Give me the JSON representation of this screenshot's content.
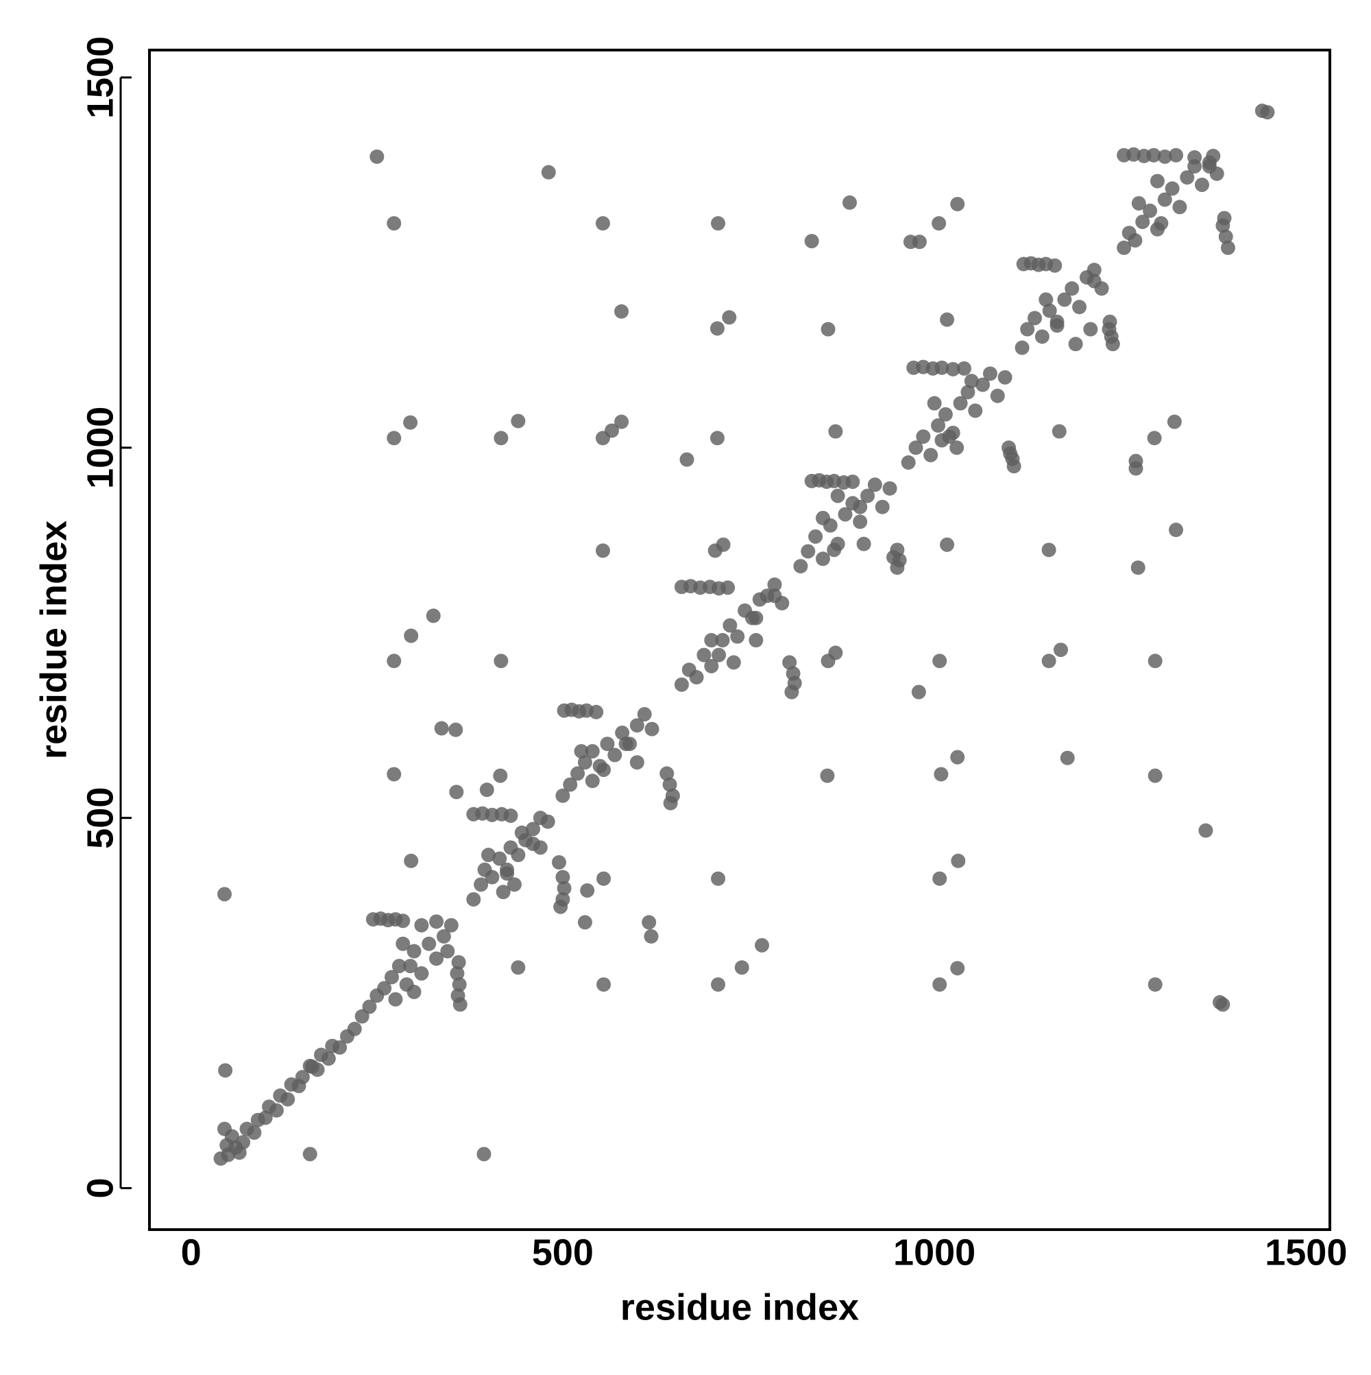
{
  "chart_data": {
    "type": "scatter",
    "x_label": "residue index",
    "y_label": "residue index",
    "xlim": [
      -56,
      1532
    ],
    "ylim": [
      -56,
      1537
    ],
    "xticks": [
      0,
      500,
      1000,
      1500
    ],
    "yticks": [
      0,
      500,
      1000,
      1500
    ],
    "grid": false,
    "color": "#5f5f5f",
    "x": [
      40,
      50,
      48,
      55,
      60,
      70,
      75,
      85,
      90,
      100,
      105,
      115,
      120,
      130,
      135,
      145,
      150,
      160,
      170,
      175,
      185,
      190,
      200,
      210,
      220,
      230,
      45,
      65,
      245,
      255,
      265,
      275,
      285,
      240,
      250,
      260,
      270,
      280,
      290,
      300,
      310,
      300,
      320,
      330,
      285,
      275,
      340,
      350,
      345,
      330,
      310,
      360,
      358,
      361,
      359,
      362,
      295,
      380,
      392,
      405,
      418,
      430,
      380,
      390,
      395,
      405,
      415,
      425,
      430,
      440,
      450,
      460,
      470,
      480,
      470,
      445,
      420,
      435,
      400,
      495,
      500,
      502,
      500,
      497,
      425,
      460,
      502,
      512,
      522,
      532,
      545,
      500,
      510,
      520,
      530,
      540,
      550,
      560,
      570,
      580,
      590,
      600,
      610,
      620,
      540,
      525,
      600,
      640,
      644,
      648,
      645,
      555,
      585,
      660,
      672,
      685,
      698,
      710,
      722,
      660,
      670,
      680,
      690,
      700,
      715,
      725,
      735,
      745,
      755,
      765,
      775,
      785,
      795,
      760,
      730,
      700,
      805,
      810,
      812,
      808,
      710,
      760,
      785,
      835,
      845,
      855,
      865,
      878,
      890,
      820,
      830,
      840,
      850,
      860,
      870,
      880,
      890,
      900,
      910,
      920,
      930,
      940,
      870,
      905,
      850,
      950,
      953,
      950,
      945,
      865,
      900,
      972,
      985,
      998,
      1010,
      1025,
      1040,
      965,
      975,
      985,
      995,
      1005,
      1015,
      1025,
      1035,
      1045,
      1055,
      1065,
      1075,
      1085,
      1095,
      1050,
      1000,
      1030,
      1100,
      1105,
      1107,
      1102,
      1010,
      1020,
      1120,
      1130,
      1140,
      1150,
      1162,
      1118,
      1125,
      1135,
      1145,
      1155,
      1165,
      1175,
      1185,
      1195,
      1205,
      1215,
      1225,
      1190,
      1150,
      1210,
      1235,
      1238,
      1240,
      1236,
      1165,
      1215,
      1255,
      1268,
      1282,
      1295,
      1310,
      1325,
      1350,
      1375,
      1255,
      1262,
      1270,
      1280,
      1290,
      1300,
      1310,
      1320,
      1330,
      1340,
      1350,
      1360,
      1370,
      1380,
      1300,
      1275,
      1388,
      1392,
      1395,
      1390,
      1305,
      1370,
      250,
      273,
      481,
      554,
      709,
      886,
      835,
      1031,
      1006,
      968,
      980,
      579,
      724,
      708,
      857,
      1017,
      1448,
      1441,
      273,
      295,
      440,
      417,
      554,
      566,
      579,
      708,
      667,
      867,
      1168,
      1323,
      1296,
      1271,
      1271,
      554,
      716,
      705,
      1017,
      1154,
      1325,
      1274,
      326,
      296,
      273,
      417,
      857,
      867,
      1007,
      1154,
      1170,
      1297,
      979,
      337,
      356,
      273,
      416,
      357,
      398,
      856,
      1009,
      1031,
      1179,
      1297,
      1365,
      296,
      555,
      709,
      1007,
      1032,
      45,
      533,
      530,
      616,
      619,
      768,
      741,
      440,
      1031,
      555,
      709,
      1007,
      1297,
      1384,
      1388,
      46,
      160,
      394,
      163
    ],
    "y": [
      40,
      45,
      58,
      70,
      55,
      62,
      80,
      75,
      92,
      95,
      110,
      105,
      125,
      120,
      140,
      138,
      150,
      165,
      160,
      180,
      175,
      192,
      190,
      205,
      215,
      232,
      80,
      48,
      363,
      364,
      362,
      363,
      361,
      245,
      260,
      270,
      285,
      300,
      275,
      320,
      290,
      265,
      330,
      310,
      330,
      255,
      340,
      355,
      320,
      360,
      355,
      305,
      290,
      275,
      260,
      248,
      300,
      505,
      506,
      504,
      505,
      503,
      390,
      410,
      430,
      420,
      445,
      430,
      460,
      450,
      470,
      485,
      460,
      495,
      500,
      480,
      400,
      410,
      450,
      440,
      420,
      405,
      390,
      380,
      425,
      465,
      645,
      646,
      644,
      645,
      643,
      530,
      545,
      560,
      575,
      590,
      570,
      600,
      585,
      615,
      600,
      625,
      640,
      620,
      550,
      590,
      575,
      560,
      545,
      530,
      520,
      565,
      600,
      812,
      813,
      811,
      812,
      810,
      811,
      680,
      700,
      690,
      720,
      705,
      740,
      760,
      745,
      780,
      770,
      795,
      800,
      815,
      790,
      740,
      710,
      740,
      710,
      695,
      682,
      670,
      720,
      770,
      800,
      955,
      956,
      954,
      955,
      953,
      954,
      840,
      860,
      880,
      850,
      895,
      870,
      910,
      925,
      900,
      935,
      950,
      920,
      945,
      935,
      870,
      905,
      862,
      848,
      838,
      852,
      862,
      920,
      1108,
      1109,
      1107,
      1108,
      1106,
      1107,
      980,
      1000,
      1015,
      990,
      1030,
      1045,
      1020,
      1060,
      1075,
      1050,
      1085,
      1100,
      1070,
      1095,
      1090,
      1060,
      1000,
      1000,
      985,
      975,
      992,
      1010,
      1015,
      1248,
      1249,
      1247,
      1248,
      1246,
      1135,
      1160,
      1175,
      1150,
      1185,
      1170,
      1200,
      1215,
      1190,
      1230,
      1240,
      1215,
      1140,
      1200,
      1160,
      1160,
      1150,
      1140,
      1170,
      1165,
      1225,
      1395,
      1396,
      1394,
      1395,
      1393,
      1395,
      1392,
      1394,
      1270,
      1290,
      1280,
      1305,
      1320,
      1295,
      1335,
      1350,
      1325,
      1365,
      1380,
      1355,
      1385,
      1370,
      1360,
      1330,
      1300,
      1285,
      1270,
      1310,
      1303,
      1380,
      1393,
      1303,
      1372,
      1303,
      1303,
      1331,
      1279,
      1329,
      1303,
      1278,
      1278,
      1184,
      1176,
      1161,
      1160,
      1173,
      1453,
      1455,
      1013,
      1034,
      1036,
      1013,
      1013,
      1023,
      1035,
      1013,
      984,
      1022,
      1022,
      1035,
      1013,
      982,
      972,
      861,
      869,
      861,
      869,
      862,
      889,
      838,
      773,
      746,
      712,
      712,
      712,
      723,
      712,
      712,
      727,
      712,
      670,
      621,
      619,
      559,
      557,
      535,
      538,
      557,
      559,
      582,
      581,
      557,
      483,
      442,
      418,
      418,
      418,
      442,
      397,
      402,
      359,
      359,
      340,
      328,
      298,
      298,
      297,
      275,
      275,
      275,
      275,
      251,
      248,
      159,
      46,
      46,
      164
    ]
  }
}
